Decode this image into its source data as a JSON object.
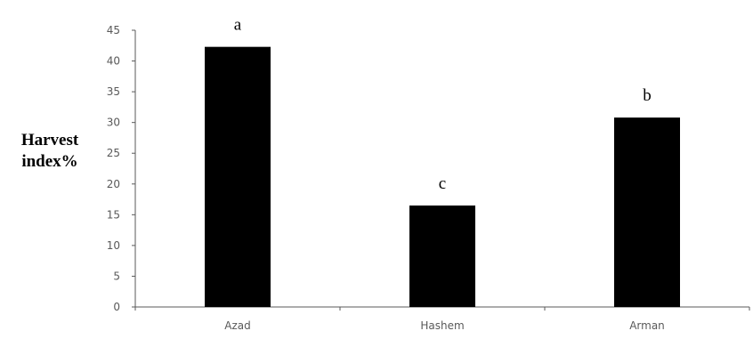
{
  "chart_data": {
    "type": "bar",
    "categories": [
      "Azad",
      "Hashem",
      "Arman"
    ],
    "values": [
      42.3,
      16.5,
      30.8
    ],
    "significance_letters": [
      "a",
      "c",
      "b"
    ],
    "ylabel_lines": [
      "Harvest",
      "index%"
    ],
    "xlabel": "",
    "ylim": [
      0,
      45
    ],
    "yticks": [
      0,
      5,
      10,
      15,
      20,
      25,
      30,
      35,
      40,
      45
    ],
    "grid": false,
    "bar_color": "#000000",
    "axis_color": "#595959"
  }
}
